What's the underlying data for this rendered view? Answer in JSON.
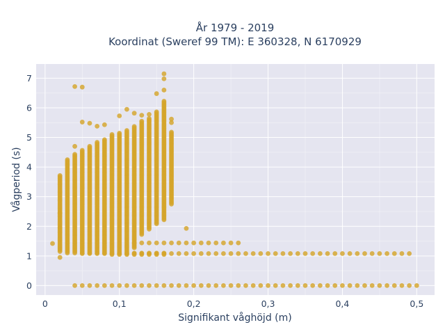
{
  "chart_data": {
    "type": "scatter",
    "title": "År 1979 - 2019",
    "subtitle": "Koordinat (Sweref 99 TM): E 360328, N 6170929",
    "xlabel": "Signifikant våghöjd (m)",
    "ylabel": "Vågperiod (s)",
    "xlim": [
      -0.012,
      0.524
    ],
    "ylim": [
      -0.32,
      7.48
    ],
    "xticks": [
      0,
      0.1,
      0.2,
      0.3,
      0.4,
      0.5
    ],
    "xticklabels": [
      "0",
      "0,1",
      "0,2",
      "0,3",
      "0,4",
      "0,5"
    ],
    "yticks": [
      0,
      1,
      2,
      3,
      4,
      5,
      6,
      7
    ],
    "yticklabels": [
      "0",
      "1",
      "2",
      "3",
      "4",
      "5",
      "6",
      "7"
    ],
    "grid": true,
    "color": "#d4a52b",
    "columns": [
      {
        "x": 0.02,
        "ymin": 1.15,
        "ymax": 3.75
      },
      {
        "x": 0.03,
        "ymin": 1.1,
        "ymax": 4.25
      },
      {
        "x": 0.04,
        "ymin": 1.1,
        "ymax": 4.45
      },
      {
        "x": 0.05,
        "ymin": 1.1,
        "ymax": 4.6
      },
      {
        "x": 0.06,
        "ymin": 1.1,
        "ymax": 4.7
      },
      {
        "x": 0.07,
        "ymin": 1.1,
        "ymax": 4.85
      },
      {
        "x": 0.08,
        "ymin": 1.1,
        "ymax": 4.95
      },
      {
        "x": 0.09,
        "ymin": 1.05,
        "ymax": 5.1
      },
      {
        "x": 0.1,
        "ymin": 1.05,
        "ymax": 5.15
      },
      {
        "x": 0.11,
        "ymin": 1.05,
        "ymax": 5.25
      },
      {
        "x": 0.12,
        "ymin": 1.05,
        "ymax": 5.4
      },
      {
        "x": 0.13,
        "ymin": 1.05,
        "ymax": 5.55
      },
      {
        "x": 0.14,
        "ymin": 1.05,
        "ymax": 5.65
      },
      {
        "x": 0.15,
        "ymin": 1.05,
        "ymax": 5.9
      },
      {
        "x": 0.16,
        "ymin": 1.05,
        "ymax": 6.25
      },
      {
        "x": 0.17,
        "ymin": 2.75,
        "ymax": 5.2
      }
    ],
    "column_gaps": [
      {
        "x": 0.12,
        "ymin": 1.1,
        "ymax": 1.25
      },
      {
        "x": 0.13,
        "ymin": 1.1,
        "ymax": 1.7
      },
      {
        "x": 0.14,
        "ymin": 1.1,
        "ymax": 1.9
      },
      {
        "x": 0.15,
        "ymin": 1.1,
        "ymax": 2.05
      },
      {
        "x": 0.16,
        "ymin": 1.1,
        "ymax": 2.2
      }
    ],
    "row_1_4": {
      "y": 1.44,
      "xmin": 0.12,
      "xmax": 0.26
    },
    "row_1_1": {
      "y": 1.08,
      "xmin": 0.05,
      "xmax": 0.49
    },
    "row_0_upper": {
      "y": 0.0,
      "xmin": 0.07,
      "xmax": 0.5
    },
    "row_0_light": {
      "y": 0.0,
      "xmin": 0.04,
      "xmax": 0.06
    },
    "outliers": [
      {
        "x": 0.04,
        "y": 6.72
      },
      {
        "x": 0.05,
        "y": 6.7
      },
      {
        "x": 0.05,
        "y": 5.52
      },
      {
        "x": 0.06,
        "y": 5.48
      },
      {
        "x": 0.07,
        "y": 5.38
      },
      {
        "x": 0.08,
        "y": 5.43
      },
      {
        "x": 0.1,
        "y": 5.73
      },
      {
        "x": 0.11,
        "y": 5.95
      },
      {
        "x": 0.12,
        "y": 5.82
      },
      {
        "x": 0.13,
        "y": 5.75
      },
      {
        "x": 0.14,
        "y": 5.78
      },
      {
        "x": 0.15,
        "y": 6.48
      },
      {
        "x": 0.16,
        "y": 7.15
      },
      {
        "x": 0.16,
        "y": 6.98
      },
      {
        "x": 0.16,
        "y": 6.6
      },
      {
        "x": 0.17,
        "y": 5.62
      },
      {
        "x": 0.17,
        "y": 5.5
      },
      {
        "x": 0.01,
        "y": 1.42
      },
      {
        "x": 0.19,
        "y": 1.93
      },
      {
        "x": 0.02,
        "y": 0.95
      },
      {
        "x": 0.04,
        "y": 4.7
      },
      {
        "x": 0.02,
        "y": 2.45
      },
      {
        "x": 0.02,
        "y": 1.95
      }
    ]
  }
}
